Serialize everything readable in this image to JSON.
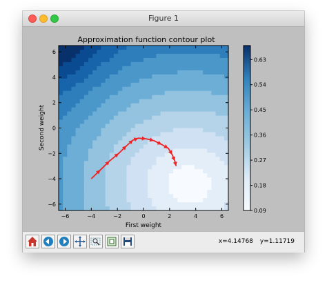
{
  "window": {
    "title": "Figure 1"
  },
  "chart_data": {
    "type": "contour",
    "title": "Approximation function contour plot",
    "xlabel": "First weight",
    "ylabel": "Second weight",
    "xlim": [
      -6.5,
      6.5
    ],
    "ylim": [
      -6.5,
      6.5
    ],
    "x_ticks": [
      -6,
      -4,
      -2,
      0,
      2,
      4,
      6
    ],
    "y_ticks": [
      -6,
      -4,
      -2,
      0,
      2,
      4,
      6
    ],
    "colorbar": {
      "range": [
        0.09,
        0.68
      ],
      "ticks": [
        0.09,
        0.18,
        0.27,
        0.36,
        0.45,
        0.54,
        0.63
      ],
      "low_color": "#f7fbff",
      "high_color": "#08306b"
    },
    "path": {
      "color": "#ee2424",
      "x": [
        -4.0,
        -3.3,
        -2.6,
        -1.9,
        -1.3,
        -0.8,
        -0.4,
        0.2,
        0.8,
        1.4,
        1.9,
        2.2,
        2.4,
        2.5
      ],
      "y": [
        -4.0,
        -3.3,
        -2.6,
        -2.0,
        -1.4,
        -0.95,
        -0.8,
        -0.85,
        -1.0,
        -1.3,
        -1.6,
        -2.1,
        -2.6,
        -3.0
      ]
    }
  },
  "toolbar": {
    "buttons": [
      "home",
      "back",
      "forward",
      "pan",
      "zoom",
      "configure-subplots",
      "save"
    ],
    "x_readout": "x=4.14768",
    "y_readout": "y=1.11719"
  }
}
